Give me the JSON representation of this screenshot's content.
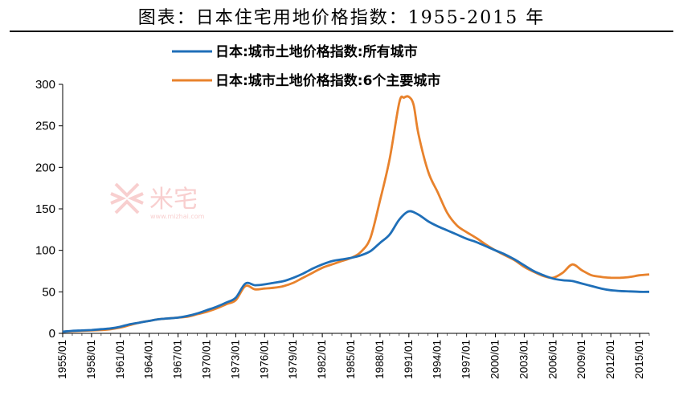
{
  "header": {
    "title": "图表：日本住宅用地价格指数：1955-2015 年"
  },
  "watermark": {
    "brand": "米宅",
    "url": "www.mizhai.com"
  },
  "chart_data": {
    "type": "line",
    "title": "",
    "xlabel": "",
    "ylabel": "",
    "ylim": [
      0,
      300
    ],
    "yticks": [
      0,
      50,
      100,
      150,
      200,
      250,
      300
    ],
    "xlim": [
      1955,
      2016
    ],
    "xticks": [
      "1955/01",
      "1958/01",
      "1961/01",
      "1964/01",
      "1967/01",
      "1970/01",
      "1973/01",
      "1976/01",
      "1979/01",
      "1982/01",
      "1985/01",
      "1988/01",
      "1991/01",
      "1994/01",
      "1997/01",
      "2000/01",
      "2003/01",
      "2006/01",
      "2009/01",
      "2012/01",
      "2015/01"
    ],
    "grid": false,
    "legend_position": "top-center",
    "series": [
      {
        "name": "日本:城市土地价格指数:所有城市",
        "color": "#1f6fb8",
        "x": [
          1955,
          1956,
          1957,
          1958,
          1959,
          1960,
          1961,
          1962,
          1963,
          1964,
          1965,
          1966,
          1967,
          1968,
          1969,
          1970,
          1971,
          1972,
          1973,
          1974,
          1975,
          1976,
          1977,
          1978,
          1979,
          1980,
          1981,
          1982,
          1983,
          1984,
          1985,
          1986,
          1987,
          1988,
          1989,
          1990,
          1991,
          1992,
          1993,
          1994,
          1995,
          1996,
          1997,
          1998,
          1999,
          2000,
          2001,
          2002,
          2003,
          2004,
          2005,
          2006,
          2007,
          2008,
          2009,
          2010,
          2011,
          2012,
          2013,
          2014,
          2015,
          2016
        ],
        "y": [
          2,
          3,
          3.5,
          4,
          5,
          6,
          8,
          11,
          13,
          15,
          17,
          18,
          19,
          21,
          24,
          28,
          32,
          37,
          43,
          60,
          58,
          59,
          61,
          63,
          67,
          72,
          78,
          83,
          87,
          89,
          91,
          94,
          99,
          109,
          119,
          137,
          147,
          143,
          135,
          129,
          124,
          119,
          114,
          110,
          105,
          100,
          95,
          89,
          82,
          75,
          70,
          66,
          64,
          63,
          60,
          57,
          54,
          52,
          51,
          50.5,
          50,
          50
        ]
      },
      {
        "name": "日本:城市土地价格指数:6个主要城市",
        "color": "#e8822c",
        "x": [
          1955,
          1956,
          1957,
          1958,
          1959,
          1960,
          1961,
          1962,
          1963,
          1964,
          1965,
          1966,
          1967,
          1968,
          1969,
          1970,
          1971,
          1972,
          1973,
          1974,
          1975,
          1976,
          1977,
          1978,
          1979,
          1980,
          1981,
          1982,
          1983,
          1984,
          1985,
          1986,
          1987,
          1988,
          1989,
          1990,
          1990.5,
          1991,
          1991.5,
          1992,
          1993,
          1994,
          1995,
          1996,
          1997,
          1998,
          1999,
          2000,
          2001,
          2002,
          2003,
          2004,
          2005,
          2006,
          2007,
          2008,
          2009,
          2010,
          2011,
          2012,
          2013,
          2014,
          2015,
          2016
        ],
        "y": [
          2,
          2.5,
          3,
          3.5,
          4,
          5,
          7,
          10,
          13,
          15,
          17,
          18,
          19,
          20,
          23,
          26,
          30,
          35,
          40,
          57,
          53,
          54,
          55,
          57,
          61,
          67,
          73,
          79,
          83,
          87,
          91,
          98,
          115,
          160,
          210,
          278,
          284,
          285,
          275,
          240,
          195,
          170,
          145,
          130,
          122,
          115,
          107,
          100,
          94,
          88,
          80,
          74,
          69,
          67,
          73,
          83,
          76,
          70,
          68,
          67,
          67,
          68,
          70,
          71
        ]
      }
    ]
  }
}
